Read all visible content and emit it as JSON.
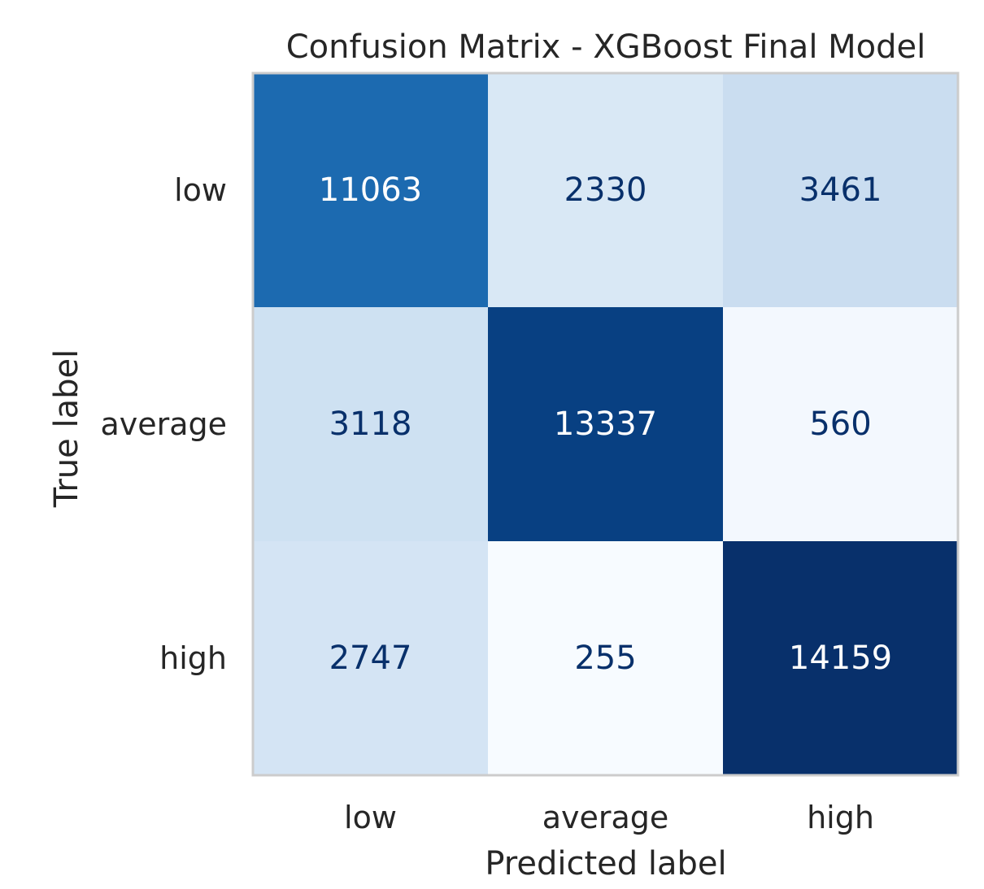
{
  "chart_data": {
    "type": "heatmap",
    "title": "Confusion Matrix - XGBoost Final Model",
    "xlabel": "Predicted label",
    "ylabel": "True label",
    "x_categories": [
      "low",
      "average",
      "high"
    ],
    "y_categories": [
      "low",
      "average",
      "high"
    ],
    "values": [
      [
        11063,
        2330,
        3461
      ],
      [
        3118,
        13337,
        560
      ],
      [
        2747,
        255,
        14159
      ]
    ],
    "colormap": "Blues",
    "colorbar": false,
    "grid": false
  }
}
